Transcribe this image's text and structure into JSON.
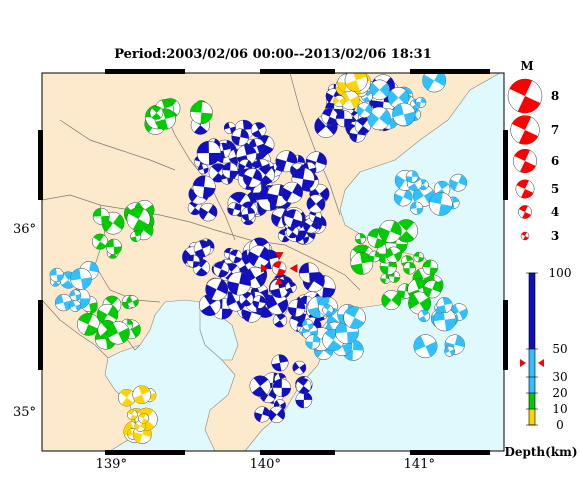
{
  "title": "Period:2003/02/06 00:00--2013/02/06 18:31",
  "axes": {
    "x_ticks": [
      {
        "value": 139,
        "label": "139°"
      },
      {
        "value": 140,
        "label": "140°"
      },
      {
        "value": 141,
        "label": "141°"
      }
    ],
    "y_ticks": [
      {
        "value": 36,
        "label": "36°"
      },
      {
        "value": 35,
        "label": "35°"
      }
    ],
    "lon_range": [
      138.55,
      141.55
    ],
    "lat_range": [
      34.78,
      36.85
    ]
  },
  "colors": {
    "land": "#fde9cc",
    "sea": "#dff9fd",
    "mechanism": "#ff0000",
    "shallow": "#ffd400",
    "mid_shallow": "#00cc00",
    "mid": "#30c0ff",
    "deep": "#1010c0"
  },
  "magnitude_legend": {
    "header": "M",
    "items": [
      {
        "label": "8",
        "value": 8
      },
      {
        "label": "7",
        "value": 7
      },
      {
        "label": "6",
        "value": 6
      },
      {
        "label": "5",
        "value": 5
      },
      {
        "label": "4",
        "value": 4
      },
      {
        "label": "3",
        "value": 3
      }
    ]
  },
  "depth_scale": {
    "title": "Depth(km)",
    "ticks": [
      {
        "label": "100",
        "value": 100
      },
      {
        "label": "50",
        "value": 50
      },
      {
        "label": "30",
        "value": 30
      },
      {
        "label": "20",
        "value": 20
      },
      {
        "label": "10",
        "value": 10
      },
      {
        "label": "0",
        "value": 0
      }
    ],
    "bands": [
      {
        "from": 0,
        "to": 10,
        "color": "#ffd400"
      },
      {
        "from": 10,
        "to": 20,
        "color": "#00cc00"
      },
      {
        "from": 20,
        "to": 30,
        "color": "#30c0ff"
      },
      {
        "from": 30,
        "to": 50,
        "color": "#30c0ff"
      },
      {
        "from": 50,
        "to": 100,
        "color": "#1010c0"
      }
    ],
    "marker_value": 40
  },
  "main_event": {
    "lon": 140.09,
    "lat": 35.78,
    "mag": 4.8
  }
}
